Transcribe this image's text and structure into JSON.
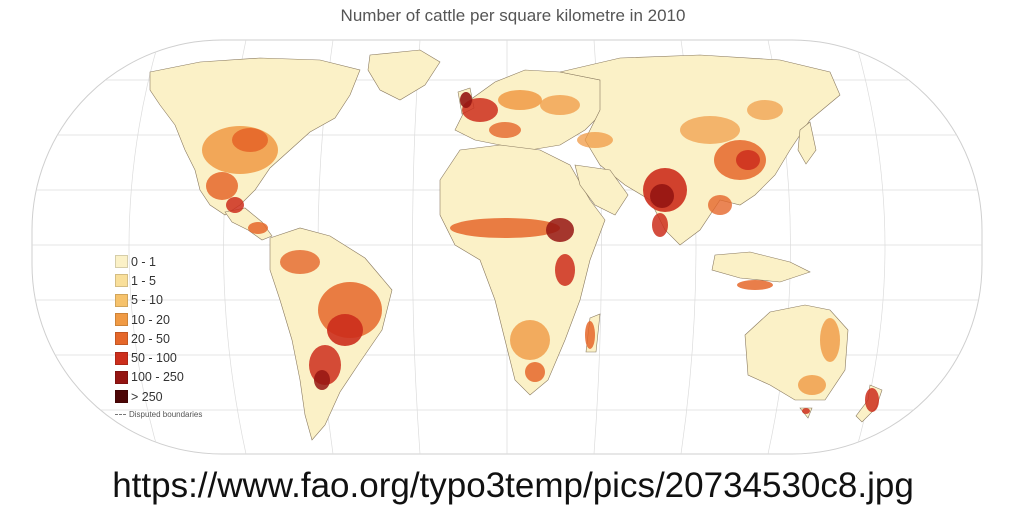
{
  "map": {
    "title": "Number of cattle per square kilometre in 2010",
    "colors": {
      "ocean": "#ffffff",
      "land_base": "#fbf1c7",
      "graticule": "#d6d6d6",
      "border": "#7a6a52"
    },
    "legend": {
      "classes": [
        {
          "label": "0 - 1",
          "color": "#fbf1c7"
        },
        {
          "label": "1 - 5",
          "color": "#f9df9a"
        },
        {
          "label": "5 - 10",
          "color": "#f6c26b"
        },
        {
          "label": "10 - 20",
          "color": "#f09a44"
        },
        {
          "label": "20 - 50",
          "color": "#e5672a"
        },
        {
          "label": "50 - 100",
          "color": "#cc2e1c"
        },
        {
          "label": "100 - 250",
          "color": "#951512"
        },
        {
          "label": "> 250",
          "color": "#4d0606"
        }
      ],
      "boundary_label": "Disputed boundaries"
    }
  },
  "source": {
    "url": "https://www.fao.org/typo3temp/pics/20734530c8.jpg"
  }
}
